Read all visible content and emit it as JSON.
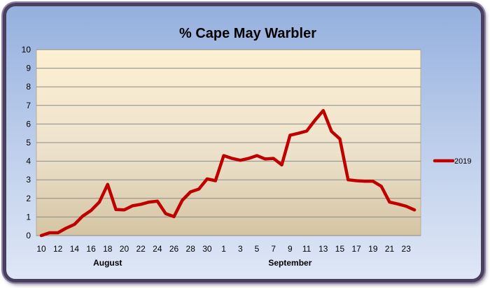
{
  "chart_data": {
    "type": "line",
    "title": "% Cape May Warbler",
    "xlabel": "",
    "ylabel": "",
    "ylim": [
      0,
      10
    ],
    "yticks": [
      "0",
      "1",
      "2",
      "3",
      "4",
      "5",
      "6",
      "7",
      "8",
      "9",
      "10"
    ],
    "xtick_labels": [
      "10",
      "12",
      "14",
      "16",
      "18",
      "20",
      "22",
      "24",
      "26",
      "28",
      "30",
      "1",
      "3",
      "5",
      "7",
      "9",
      "11",
      "13",
      "15",
      "17",
      "19",
      "21",
      "23"
    ],
    "month_labels": [
      "August",
      "September"
    ],
    "grid": "horizontal",
    "legend_position": "right",
    "series": [
      {
        "name": "2019",
        "color": "#c00000",
        "x": [
          "10",
          "11",
          "12",
          "13",
          "14",
          "15",
          "16",
          "17",
          "18",
          "19",
          "20",
          "21",
          "22",
          "23",
          "24",
          "25",
          "26",
          "27",
          "28",
          "29",
          "30",
          "31",
          "1",
          "2",
          "3",
          "4",
          "5",
          "6",
          "7",
          "8",
          "9",
          "10",
          "11",
          "12",
          "13",
          "14",
          "15",
          "16",
          "17",
          "18",
          "19",
          "20",
          "21",
          "22",
          "23",
          "24"
        ],
        "values": [
          0,
          0.15,
          0.15,
          0.4,
          0.6,
          1.05,
          1.35,
          1.8,
          2.75,
          1.4,
          1.38,
          1.6,
          1.68,
          1.8,
          1.85,
          1.18,
          1.02,
          1.9,
          2.35,
          2.5,
          3.05,
          2.95,
          4.3,
          4.15,
          4.05,
          4.15,
          4.3,
          4.12,
          4.15,
          3.8,
          5.4,
          5.5,
          5.62,
          6.2,
          6.72,
          5.6,
          5.2,
          3.0,
          2.95,
          2.92,
          2.92,
          2.65,
          1.8,
          1.7,
          1.58,
          1.38
        ]
      }
    ]
  }
}
